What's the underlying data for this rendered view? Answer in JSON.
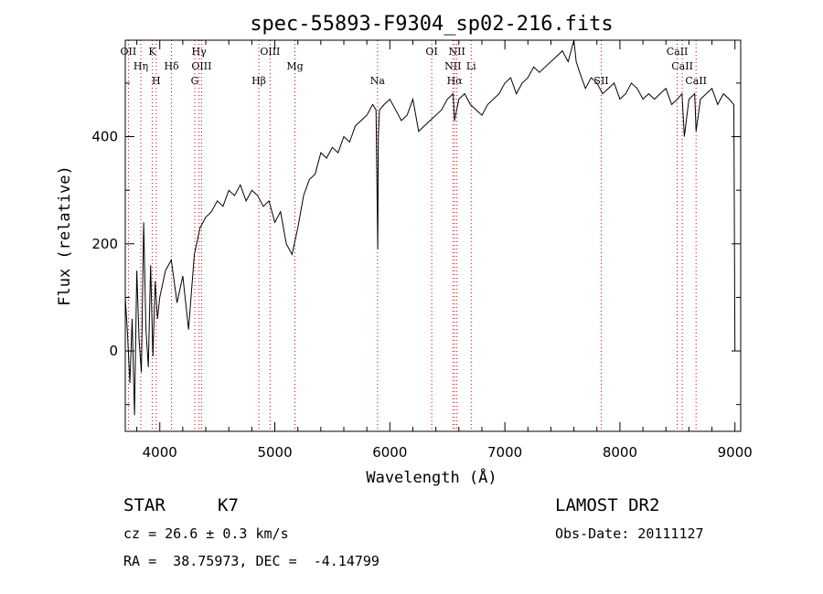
{
  "chart_data": {
    "type": "line",
    "title": "spec-55893-F9304_sp02-216.fits",
    "xlabel": "Wavelength (Å)",
    "ylabel": "Flux (relative)",
    "xlim": [
      3700,
      9050
    ],
    "ylim": [
      -150,
      580
    ],
    "xticks": [
      4000,
      5000,
      6000,
      7000,
      8000,
      9000
    ],
    "yticks": [
      0,
      200,
      400
    ],
    "line_color": "#000000",
    "marker_color": "#cc0000",
    "grid": false,
    "series": [
      {
        "x": [
          3700,
          3720,
          3740,
          3760,
          3780,
          3800,
          3820,
          3840,
          3860,
          3880,
          3900,
          3920,
          3940,
          3960,
          3980,
          4000,
          4050,
          4100,
          4150,
          4200,
          4250,
          4300,
          4350,
          4400,
          4450,
          4500,
          4550,
          4600,
          4650,
          4700,
          4750,
          4800,
          4850,
          4900,
          4950,
          5000,
          5050,
          5100,
          5150,
          5200,
          5250,
          5300,
          5350,
          5400,
          5450,
          5500,
          5550,
          5600,
          5650,
          5700,
          5750,
          5800,
          5850,
          5880,
          5895,
          5900,
          5910,
          5950,
          6000,
          6050,
          6100,
          6150,
          6200,
          6250,
          6300,
          6350,
          6400,
          6450,
          6500,
          6550,
          6562,
          6600,
          6650,
          6700,
          6750,
          6800,
          6850,
          6900,
          6950,
          7000,
          7050,
          7100,
          7150,
          7200,
          7250,
          7300,
          7350,
          7400,
          7450,
          7500,
          7550,
          7600,
          7620,
          7650,
          7700,
          7750,
          7800,
          7850,
          7900,
          7950,
          8000,
          8050,
          8100,
          8150,
          8200,
          8250,
          8300,
          8350,
          8400,
          8450,
          8500,
          8540,
          8560,
          8600,
          8650,
          8662,
          8700,
          8750,
          8800,
          8850,
          8900,
          8950,
          8990,
          9000
        ],
        "y": [
          100,
          30,
          -60,
          60,
          -120,
          150,
          20,
          -40,
          240,
          40,
          -30,
          160,
          -10,
          130,
          60,
          100,
          150,
          170,
          90,
          140,
          40,
          180,
          230,
          250,
          260,
          280,
          270,
          300,
          290,
          310,
          280,
          300,
          290,
          270,
          280,
          240,
          260,
          200,
          180,
          230,
          290,
          320,
          330,
          370,
          360,
          380,
          370,
          400,
          390,
          420,
          430,
          440,
          460,
          450,
          190,
          400,
          450,
          460,
          470,
          450,
          430,
          440,
          470,
          410,
          420,
          430,
          440,
          450,
          470,
          480,
          430,
          470,
          480,
          460,
          450,
          440,
          460,
          470,
          480,
          500,
          510,
          480,
          500,
          510,
          530,
          520,
          530,
          540,
          550,
          560,
          540,
          580,
          540,
          520,
          490,
          510,
          500,
          480,
          490,
          500,
          470,
          480,
          500,
          490,
          470,
          480,
          470,
          480,
          490,
          460,
          470,
          480,
          400,
          470,
          480,
          410,
          470,
          480,
          490,
          460,
          480,
          470,
          460,
          0
        ]
      }
    ],
    "spectral_lines": [
      {
        "label": "OII",
        "x": 3727
      },
      {
        "label": "Hη",
        "x": 3835
      },
      {
        "label": "H",
        "x": 3969
      },
      {
        "label": "K",
        "x": 3934
      },
      {
        "label": "Hδ",
        "x": 4102
      },
      {
        "label": "G",
        "x": 4304
      },
      {
        "label": "Hγ",
        "x": 4341
      },
      {
        "label": "OIII",
        "x": 4363
      },
      {
        "label": "Hβ",
        "x": 4861
      },
      {
        "label": "OIII",
        "x": 4959
      },
      {
        "label": "Mg",
        "x": 5175
      },
      {
        "label": "Na",
        "x": 5893
      },
      {
        "label": "OI",
        "x": 6364
      },
      {
        "label": "NII",
        "x": 6548
      },
      {
        "label": "Hα",
        "x": 6563
      },
      {
        "label": "NII",
        "x": 6583
      },
      {
        "label": "Li",
        "x": 6707
      },
      {
        "label": "SII",
        "x": 7838
      },
      {
        "label": "CaII",
        "x": 8498
      },
      {
        "label": "CaII",
        "x": 8542
      },
      {
        "label": "CaII",
        "x": 8662
      }
    ]
  },
  "info": {
    "object_class": "STAR",
    "subclass": "K7",
    "survey": "LAMOST DR2",
    "redshift": "cz = 26.6 ± 0.3 km/s",
    "obs_date": "Obs-Date: 20111127",
    "coords": "RA =  38.75973, DEC =  -4.14799"
  }
}
